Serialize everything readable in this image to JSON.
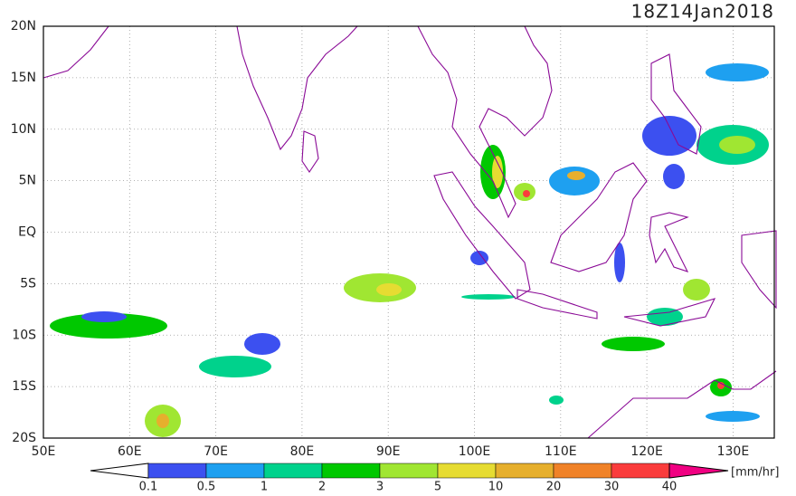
{
  "title": "18Z14Jan2018",
  "lat_labels": [
    "20N",
    "15N",
    "10N",
    "5N",
    "EQ",
    "5S",
    "10S",
    "15S",
    "20S"
  ],
  "lon_labels": [
    "50E",
    "60E",
    "70E",
    "80E",
    "90E",
    "100E",
    "110E",
    "120E",
    "130E"
  ],
  "colorbar": {
    "levels": [
      0.1,
      0.5,
      1,
      2,
      3,
      5,
      10,
      20,
      30,
      40
    ],
    "colors": [
      "#ffffff",
      "#3c50f0",
      "#1ea0f0",
      "#00d28c",
      "#00c800",
      "#a0e632",
      "#e6dc32",
      "#e6af2d",
      "#f08228",
      "#fa3c3c",
      "#f00082"
    ],
    "unit": "[mm/hr]"
  }
}
